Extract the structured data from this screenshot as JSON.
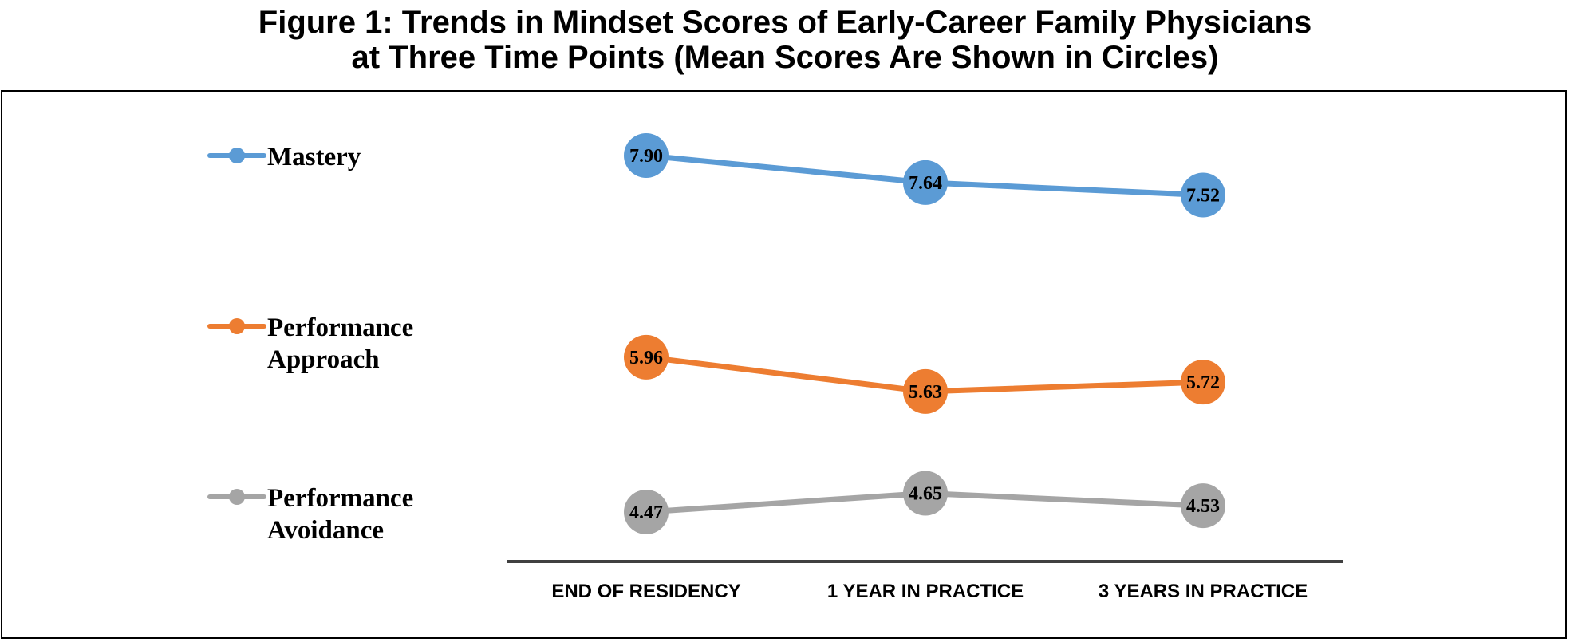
{
  "title": {
    "line1": "Figure 1: Trends in Mindset Scores of Early-Career Family Physicians",
    "line2": "at Three Time Points (Mean Scores Are Shown in Circles)"
  },
  "chart_data": {
    "type": "line",
    "title": "Figure 1: Trends in Mindset Scores of Early-Career Family Physicians at Three Time Points (Mean Scores Are Shown in Circles)",
    "xlabel": "",
    "ylabel": "",
    "ylim": [
      4.2,
      8.0
    ],
    "grid": false,
    "y_axis_visible": false,
    "legend_placement": "left",
    "categories": [
      "END OF RESIDENCY",
      "1 YEAR IN PRACTICE",
      "3 YEARS IN PRACTICE"
    ],
    "series": [
      {
        "name": "Mastery",
        "legend_lines": [
          "Mastery"
        ],
        "color": "#5B9BD5",
        "values": [
          7.9,
          7.64,
          7.52
        ],
        "labels": [
          "7.90",
          "7.64",
          "7.52"
        ]
      },
      {
        "name": "Performance Approach",
        "legend_lines": [
          "Performance",
          "Approach"
        ],
        "color": "#ED7D31",
        "values": [
          5.96,
          5.63,
          5.72
        ],
        "labels": [
          "5.96",
          "5.63",
          "5.72"
        ]
      },
      {
        "name": "Performance Avoidance",
        "legend_lines": [
          "Performance",
          "Avoidance"
        ],
        "color": "#A5A5A5",
        "values": [
          4.47,
          4.65,
          4.53
        ],
        "labels": [
          "4.47",
          "4.65",
          "4.53"
        ]
      }
    ]
  }
}
